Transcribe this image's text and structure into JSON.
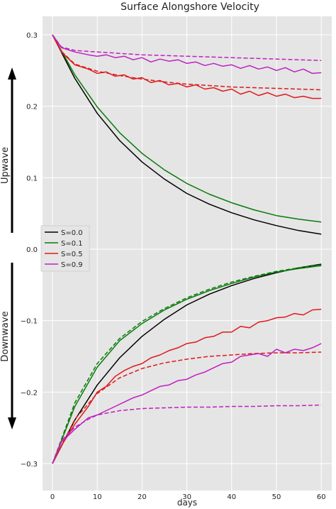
{
  "chart_data": {
    "type": "line",
    "title": "Surface Alongshore Velocity",
    "xlabel": "days",
    "xlim": [
      -5,
      62
    ],
    "ylim": [
      -0.3,
      0.3
    ],
    "grid": true,
    "legend_position": "center-left",
    "x_ticks": [
      0,
      10,
      20,
      30,
      40,
      50,
      60
    ],
    "y_ticks": [
      0.3,
      0.2,
      0.1,
      0.0,
      -0.1,
      -0.2,
      -0.3
    ],
    "x_tick_labels": [
      "0",
      "10",
      "20",
      "30",
      "40",
      "50",
      "60"
    ],
    "y_tick_labels": [
      "0.3",
      "0.2",
      "0.1",
      "0.0",
      "−0.1",
      "−0.2",
      "−0.3"
    ],
    "side_labels": {
      "upper": "Upwave",
      "lower": "Downwave"
    },
    "legend": [
      {
        "name": "S=0.0",
        "color": "#000000"
      },
      {
        "name": "S=0.1",
        "color": "#0a7a0a"
      },
      {
        "name": "S=0.5",
        "color": "#e0191c"
      },
      {
        "name": "S=0.9",
        "color": "#c020c0"
      }
    ],
    "series": [
      {
        "group": "upwave",
        "color": "#000000",
        "style": "solid",
        "x": [
          0,
          5,
          10,
          15,
          20,
          25,
          30,
          35,
          40,
          45,
          50,
          55,
          60
        ],
        "y": [
          0.3,
          0.239,
          0.19,
          0.152,
          0.122,
          0.098,
          0.078,
          0.063,
          0.051,
          0.041,
          0.033,
          0.026,
          0.021
        ]
      },
      {
        "group": "upwave",
        "color": "#0a7a0a",
        "style": "solid",
        "x": [
          0,
          5,
          10,
          15,
          20,
          25,
          30,
          35,
          40,
          45,
          50,
          55,
          60
        ],
        "y": [
          0.3,
          0.244,
          0.199,
          0.163,
          0.134,
          0.111,
          0.092,
          0.077,
          0.065,
          0.055,
          0.047,
          0.042,
          0.038
        ]
      },
      {
        "group": "upwave",
        "color": "#e0191c",
        "style": "dashed",
        "x": [
          0,
          2,
          5,
          10,
          15,
          20,
          25,
          30,
          35,
          40,
          45,
          50,
          55,
          60
        ],
        "y": [
          0.3,
          0.277,
          0.259,
          0.249,
          0.243,
          0.238,
          0.234,
          0.231,
          0.229,
          0.227,
          0.226,
          0.225,
          0.224,
          0.223
        ]
      },
      {
        "group": "upwave",
        "color": "#e0191c",
        "style": "solid",
        "x": [
          0,
          2,
          5,
          8,
          10,
          12,
          14,
          16,
          18,
          20,
          22,
          24,
          26,
          28,
          30,
          32,
          34,
          36,
          38,
          40,
          42,
          44,
          46,
          48,
          50,
          52,
          54,
          56,
          58,
          60
        ],
        "y": [
          0.3,
          0.276,
          0.258,
          0.252,
          0.246,
          0.248,
          0.242,
          0.244,
          0.238,
          0.24,
          0.233,
          0.236,
          0.23,
          0.232,
          0.227,
          0.23,
          0.224,
          0.226,
          0.221,
          0.224,
          0.217,
          0.221,
          0.215,
          0.219,
          0.214,
          0.217,
          0.212,
          0.214,
          0.211,
          0.211
        ]
      },
      {
        "group": "upwave",
        "color": "#c020c0",
        "style": "dashed",
        "x": [
          0,
          2,
          5,
          10,
          15,
          20,
          25,
          30,
          35,
          40,
          45,
          50,
          55,
          60
        ],
        "y": [
          0.3,
          0.283,
          0.278,
          0.276,
          0.274,
          0.272,
          0.271,
          0.27,
          0.269,
          0.268,
          0.267,
          0.266,
          0.265,
          0.264
        ]
      },
      {
        "group": "upwave",
        "color": "#c020c0",
        "style": "solid",
        "x": [
          0,
          2,
          5,
          8,
          10,
          12,
          14,
          16,
          18,
          20,
          22,
          24,
          26,
          28,
          30,
          32,
          34,
          36,
          38,
          40,
          42,
          44,
          46,
          48,
          50,
          52,
          54,
          56,
          58,
          60
        ],
        "y": [
          0.3,
          0.282,
          0.276,
          0.272,
          0.27,
          0.272,
          0.268,
          0.27,
          0.265,
          0.268,
          0.262,
          0.266,
          0.263,
          0.265,
          0.26,
          0.262,
          0.257,
          0.26,
          0.256,
          0.258,
          0.253,
          0.257,
          0.252,
          0.255,
          0.25,
          0.254,
          0.248,
          0.252,
          0.246,
          0.247
        ]
      },
      {
        "group": "downwave",
        "color": "#000000",
        "style": "solid",
        "x": [
          0,
          5,
          10,
          15,
          20,
          25,
          30,
          35,
          40,
          45,
          50,
          55,
          60
        ],
        "y": [
          -0.3,
          -0.239,
          -0.19,
          -0.152,
          -0.122,
          -0.098,
          -0.078,
          -0.063,
          -0.051,
          -0.041,
          -0.033,
          -0.026,
          -0.021
        ]
      },
      {
        "group": "downwave",
        "color": "#0a7a0a",
        "style": "dashed",
        "x": [
          0,
          5,
          10,
          15,
          20,
          25,
          30,
          35,
          40,
          45,
          50,
          55,
          60
        ],
        "y": [
          -0.3,
          -0.215,
          -0.16,
          -0.125,
          -0.101,
          -0.083,
          -0.068,
          -0.056,
          -0.046,
          -0.038,
          -0.031,
          -0.026,
          -0.022
        ]
      },
      {
        "group": "downwave",
        "color": "#0a7a0a",
        "style": "solid",
        "x": [
          0,
          5,
          10,
          15,
          20,
          25,
          30,
          35,
          40,
          45,
          50,
          55,
          60
        ],
        "y": [
          -0.3,
          -0.22,
          -0.165,
          -0.128,
          -0.104,
          -0.085,
          -0.07,
          -0.058,
          -0.048,
          -0.039,
          -0.032,
          -0.027,
          -0.023
        ]
      },
      {
        "group": "downwave",
        "color": "#e0191c",
        "style": "dashed",
        "x": [
          0,
          5,
          10,
          15,
          20,
          25,
          30,
          35,
          40,
          45,
          50,
          55,
          60
        ],
        "y": [
          -0.3,
          -0.238,
          -0.202,
          -0.18,
          -0.167,
          -0.159,
          -0.154,
          -0.15,
          -0.148,
          -0.146,
          -0.145,
          -0.145,
          -0.144
        ]
      },
      {
        "group": "downwave",
        "color": "#e0191c",
        "style": "solid",
        "x": [
          0,
          2,
          5,
          8,
          10,
          12,
          14,
          16,
          18,
          20,
          22,
          24,
          26,
          28,
          30,
          32,
          34,
          36,
          38,
          40,
          42,
          44,
          46,
          48,
          50,
          52,
          54,
          56,
          58,
          60
        ],
        "y": [
          -0.3,
          -0.275,
          -0.245,
          -0.22,
          -0.2,
          -0.192,
          -0.178,
          -0.17,
          -0.164,
          -0.16,
          -0.152,
          -0.148,
          -0.142,
          -0.138,
          -0.132,
          -0.13,
          -0.124,
          -0.122,
          -0.116,
          -0.116,
          -0.108,
          -0.11,
          -0.102,
          -0.1,
          -0.096,
          -0.095,
          -0.09,
          -0.092,
          -0.085,
          -0.084
        ]
      },
      {
        "group": "downwave",
        "color": "#c020c0",
        "style": "dashed",
        "x": [
          0,
          2,
          5,
          8,
          10,
          15,
          20,
          25,
          30,
          35,
          40,
          45,
          50,
          55,
          60
        ],
        "y": [
          -0.3,
          -0.268,
          -0.249,
          -0.238,
          -0.232,
          -0.226,
          -0.223,
          -0.222,
          -0.221,
          -0.221,
          -0.22,
          -0.22,
          -0.219,
          -0.219,
          -0.218
        ]
      },
      {
        "group": "downwave",
        "color": "#c020c0",
        "style": "solid",
        "x": [
          0,
          2,
          5,
          8,
          10,
          12,
          14,
          16,
          18,
          20,
          22,
          24,
          26,
          28,
          30,
          32,
          34,
          36,
          38,
          40,
          42,
          44,
          46,
          48,
          50,
          52,
          54,
          56,
          58,
          60
        ],
        "y": [
          -0.3,
          -0.27,
          -0.252,
          -0.236,
          -0.232,
          -0.226,
          -0.22,
          -0.214,
          -0.208,
          -0.204,
          -0.198,
          -0.192,
          -0.19,
          -0.184,
          -0.182,
          -0.176,
          -0.172,
          -0.166,
          -0.16,
          -0.158,
          -0.15,
          -0.148,
          -0.146,
          -0.15,
          -0.14,
          -0.145,
          -0.14,
          -0.142,
          -0.138,
          -0.132
        ]
      }
    ]
  }
}
